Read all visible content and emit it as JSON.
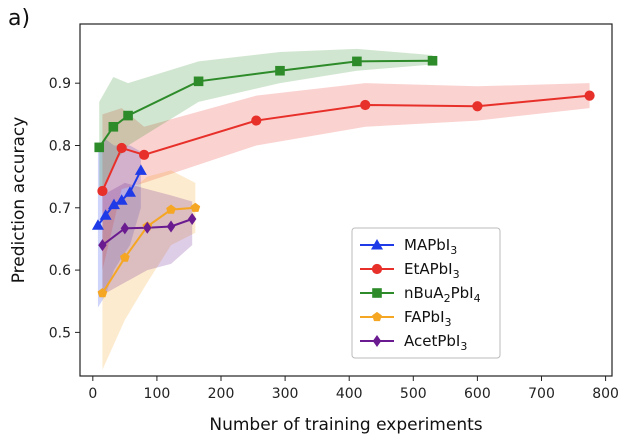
{
  "panel_label": "a)",
  "chart_data": {
    "type": "line",
    "title": "",
    "xlabel": "Number of training experiments",
    "ylabel": "Prediction accuracy",
    "xlim": [
      -20,
      810
    ],
    "ylim": [
      0.43,
      0.995
    ],
    "xticks": [
      0,
      100,
      200,
      300,
      400,
      500,
      600,
      700,
      800
    ],
    "yticks": [
      0.5,
      0.6,
      0.7,
      0.8,
      0.9
    ],
    "grid": false,
    "legend_position": "lower-center",
    "series": [
      {
        "name": "MAPbI3",
        "name_main": "MAPbI",
        "name_sub": "3",
        "color": "#1f3be8",
        "marker": "triangle",
        "x": [
          8,
          20,
          33,
          45,
          58,
          75
        ],
        "y": [
          0.672,
          0.688,
          0.705,
          0.712,
          0.725,
          0.76
        ],
        "y_lower": [
          0.54,
          0.56,
          0.6,
          0.62,
          0.64,
          0.7
        ],
        "y_upper": [
          0.8,
          0.81,
          0.8,
          0.8,
          0.8,
          0.79
        ]
      },
      {
        "name": "EtAPbI3",
        "name_main": "EtAPbI",
        "name_sub": "3",
        "color": "#e8302a",
        "marker": "circle",
        "x": [
          15,
          45,
          80,
          255,
          425,
          600,
          775
        ],
        "y": [
          0.727,
          0.796,
          0.785,
          0.84,
          0.865,
          0.863,
          0.88
        ],
        "y_lower": [
          0.6,
          0.73,
          0.74,
          0.8,
          0.83,
          0.84,
          0.86
        ],
        "y_upper": [
          0.85,
          0.86,
          0.83,
          0.88,
          0.9,
          0.895,
          0.9
        ]
      },
      {
        "name": "nBuA2PbI4",
        "name_main": "nBuA",
        "name_sub": "2",
        "name_main2": "PbI",
        "name_sub2": "4",
        "color": "#2d8b2a",
        "marker": "square",
        "x": [
          10,
          32,
          55,
          165,
          292,
          412,
          530
        ],
        "y": [
          0.797,
          0.83,
          0.848,
          0.903,
          0.92,
          0.935,
          0.936
        ],
        "y_lower": [
          0.72,
          0.77,
          0.8,
          0.87,
          0.9,
          0.92,
          0.93
        ],
        "y_upper": [
          0.87,
          0.91,
          0.9,
          0.935,
          0.95,
          0.955,
          0.945
        ]
      },
      {
        "name": "FAPbI3",
        "name_main": "FAPbI",
        "name_sub": "3",
        "color": "#f5a623",
        "marker": "pentagon",
        "x": [
          15,
          50,
          85,
          122,
          160
        ],
        "y": [
          0.563,
          0.62,
          0.67,
          0.697,
          0.7
        ],
        "y_lower": [
          0.44,
          0.52,
          0.58,
          0.64,
          0.66
        ],
        "y_upper": [
          0.68,
          0.72,
          0.75,
          0.76,
          0.74
        ]
      },
      {
        "name": "AcetPbI3",
        "name_main": "AcetPbI",
        "name_sub": "3",
        "color": "#6a1b8f",
        "marker": "diamond",
        "x": [
          15,
          50,
          85,
          122,
          155
        ],
        "y": [
          0.64,
          0.667,
          0.668,
          0.67,
          0.682
        ],
        "y_lower": [
          0.56,
          0.58,
          0.6,
          0.61,
          0.64
        ],
        "y_upper": [
          0.72,
          0.74,
          0.73,
          0.72,
          0.71
        ]
      }
    ]
  }
}
